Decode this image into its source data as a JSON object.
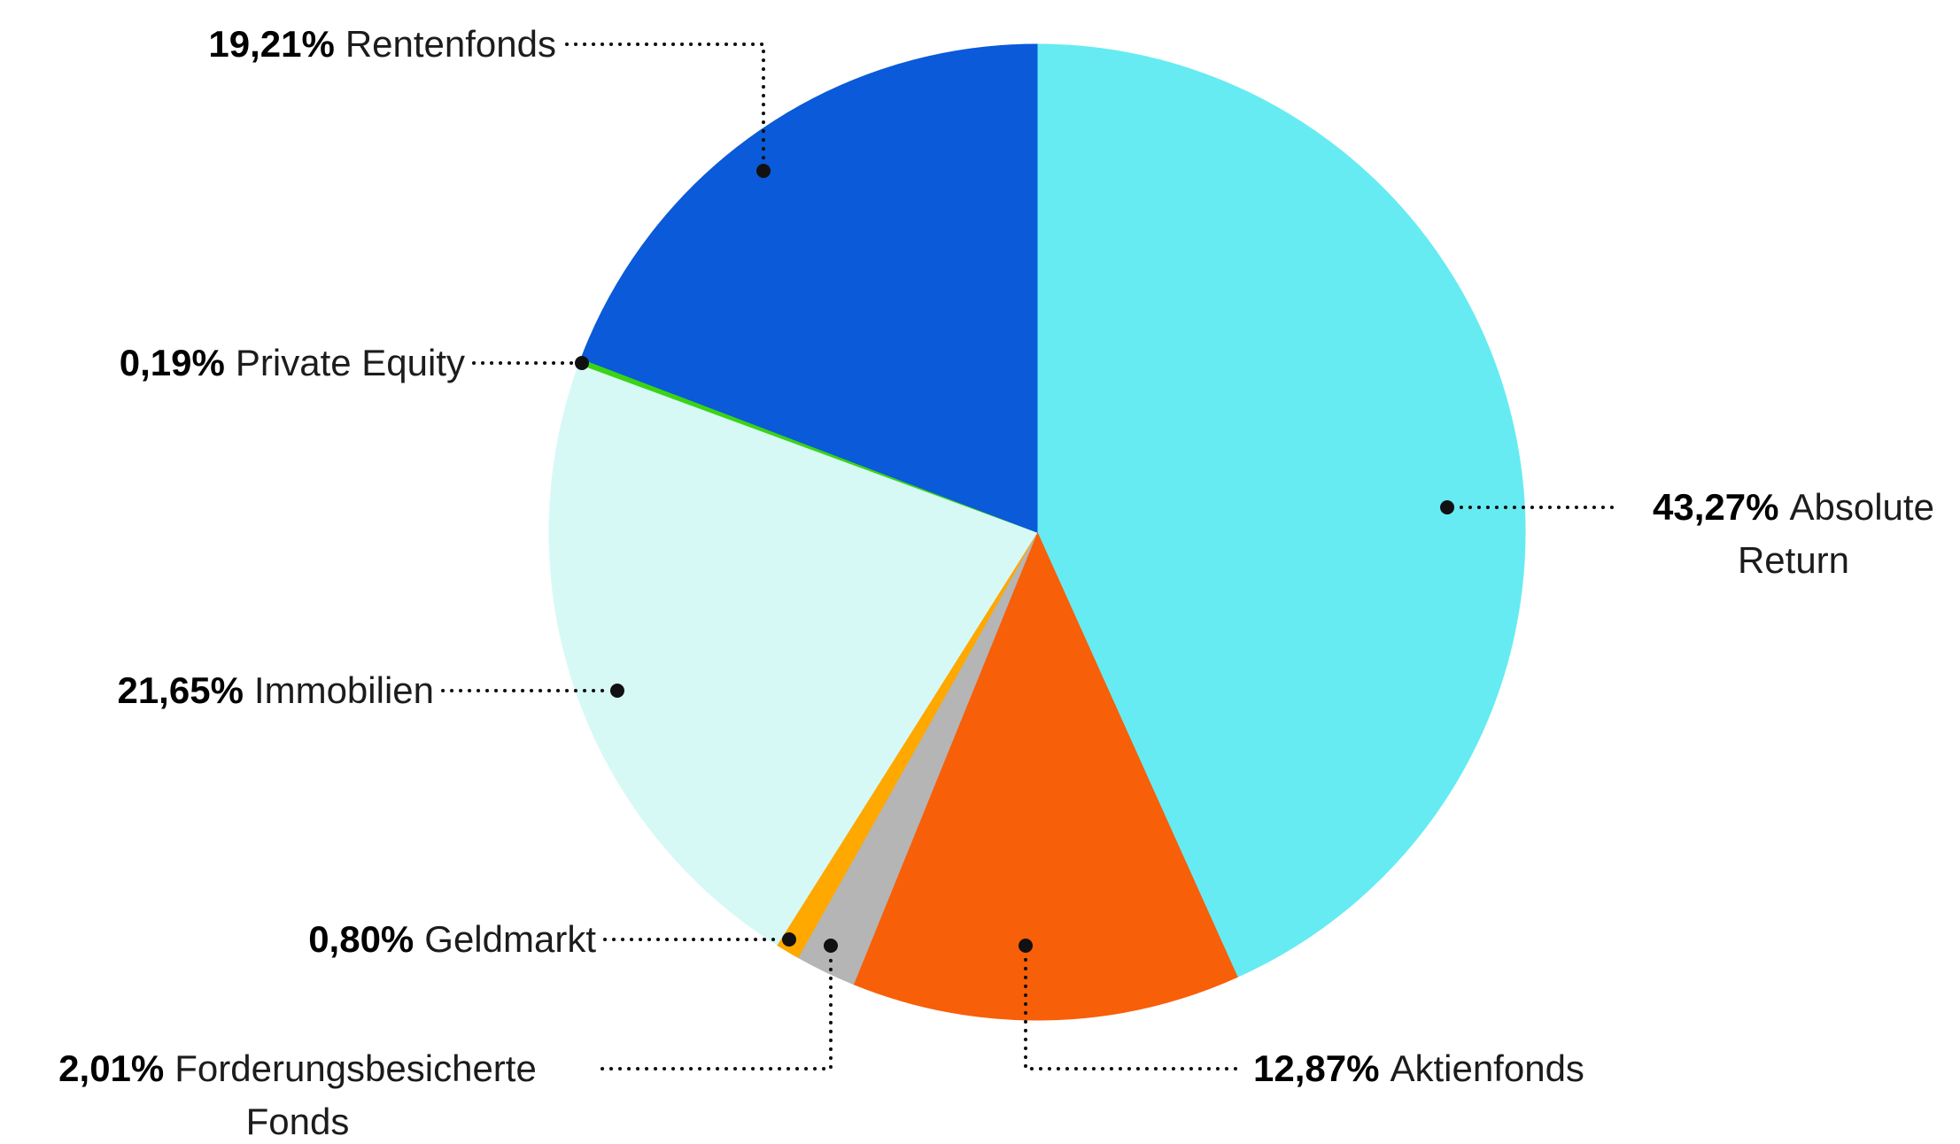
{
  "chart_data": {
    "type": "pie",
    "legend": "none",
    "start_angle_deg": -90,
    "direction": "clockwise",
    "slices": [
      {
        "label": "Absolute Return",
        "value_pct": 43.27,
        "display": "43,27%",
        "color": "#66ebf2"
      },
      {
        "label": "Aktienfonds",
        "value_pct": 12.87,
        "display": "12,87%",
        "color": "#f85f09"
      },
      {
        "label": "Forderungsbesicherte Fonds",
        "value_pct": 2.01,
        "display": "2,01%",
        "color": "#b5b5b5"
      },
      {
        "label": "Geldmarkt",
        "value_pct": 0.8,
        "display": "0,80%",
        "color": "#ffa800"
      },
      {
        "label": "Immobilien",
        "value_pct": 21.65,
        "display": "21,65%",
        "color": "#d7f9f6"
      },
      {
        "label": "Private Equity",
        "value_pct": 0.19,
        "display": "0,19%",
        "color": "#3bd414"
      },
      {
        "label": "Rentenfonds",
        "value_pct": 19.21,
        "display": "19,21%",
        "color": "#0a5ad9"
      }
    ]
  },
  "style": {
    "label_text_color": "#1c1c1c",
    "leader_color": "#111111",
    "background": "#ffffff"
  }
}
